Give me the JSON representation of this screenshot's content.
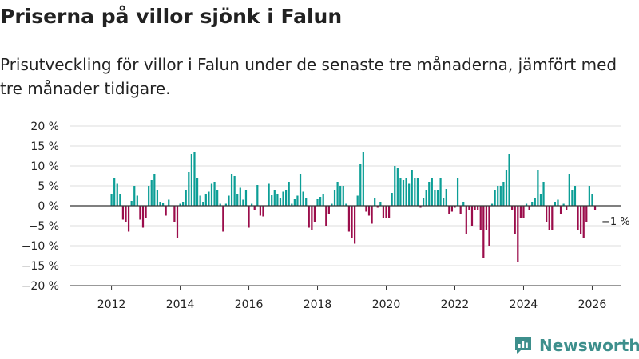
{
  "title": "Priserna på villor sjönk i Falun",
  "subtitle": "Prisutveckling för villor i Falun under de senaste tre månaderna, jämfört med tre månader tidigare.",
  "brand": "Newsworthy",
  "colors": {
    "positive": "#0c9e96",
    "negative": "#9b0d4b",
    "text": "#222222",
    "grid": "#dddddd",
    "axis": "#333333",
    "brand": "#3d8f8c"
  },
  "chart_data": {
    "type": "bar",
    "title": "Priserna på villor sjönk i Falun",
    "xlabel": "",
    "ylabel": "",
    "ylim": [
      -20,
      20
    ],
    "xlim": [
      2010.8,
      2026.85
    ],
    "yticks": [
      20,
      15,
      10,
      5,
      0,
      -5,
      -10,
      -15,
      -20
    ],
    "ytick_labels": [
      "20 %",
      "15 %",
      "10 %",
      "5 %",
      "0 %",
      "−5 %",
      "−10 %",
      "−15 %",
      "−20 %"
    ],
    "xticks": [
      2012,
      2014,
      2016,
      2018,
      2020,
      2022,
      2024,
      2026
    ],
    "xtick_labels": [
      "2012",
      "2014",
      "2016",
      "2018",
      "2020",
      "2022",
      "2024",
      "2026"
    ],
    "start_year": 2012,
    "months_per_bar": 1,
    "values": [
      3,
      7,
      5.5,
      3,
      -3.5,
      -4,
      -6.5,
      1.2,
      5,
      2.5,
      -3.5,
      -5.5,
      -3,
      5,
      6.5,
      8,
      4,
      1,
      0.8,
      -2.5,
      1.5,
      0,
      -4,
      -8,
      0.5,
      1,
      4,
      8.5,
      13,
      13.5,
      7,
      2.5,
      1,
      3,
      3.5,
      5.5,
      6,
      4,
      0.5,
      -6.5,
      0.5,
      2.5,
      8,
      7.5,
      3,
      4.5,
      1.5,
      4,
      -5.5,
      0.5,
      -1,
      5.2,
      -2.5,
      -2.7,
      0,
      5.5,
      2.7,
      4,
      3,
      2,
      3.5,
      4,
      6,
      0.5,
      1.8,
      2.5,
      8,
      3.5,
      2,
      -5.5,
      -6,
      -4,
      1.6,
      2.2,
      3,
      -5,
      -2,
      0.5,
      4,
      6,
      5,
      5,
      0.5,
      -6.5,
      -8,
      -9.5,
      2.5,
      10.5,
      13.5,
      -1.5,
      -2.5,
      -4.5,
      2,
      -0.5,
      1,
      -3,
      -3,
      -3,
      3.2,
      10,
      9.5,
      7,
      6.5,
      7,
      5.5,
      9,
      7,
      7,
      -0.5,
      2,
      4,
      6,
      7,
      4,
      4,
      7,
      2,
      4.2,
      -2,
      -1.5,
      -0.5,
      7,
      -2,
      1,
      -7,
      -1,
      -5,
      -1,
      -1,
      -6,
      -13,
      -6,
      -10,
      0.5,
      4,
      5,
      5,
      6,
      9,
      13,
      -1,
      -7,
      -14,
      -3,
      -3,
      0.5,
      -1,
      1,
      2,
      9,
      3,
      6,
      -4,
      -6,
      -6,
      1,
      1.5,
      -2,
      0.5,
      -1,
      8,
      4,
      5,
      -6,
      -7,
      -8,
      -4,
      5,
      3,
      -1
    ],
    "last_value_label": "−1 %"
  }
}
